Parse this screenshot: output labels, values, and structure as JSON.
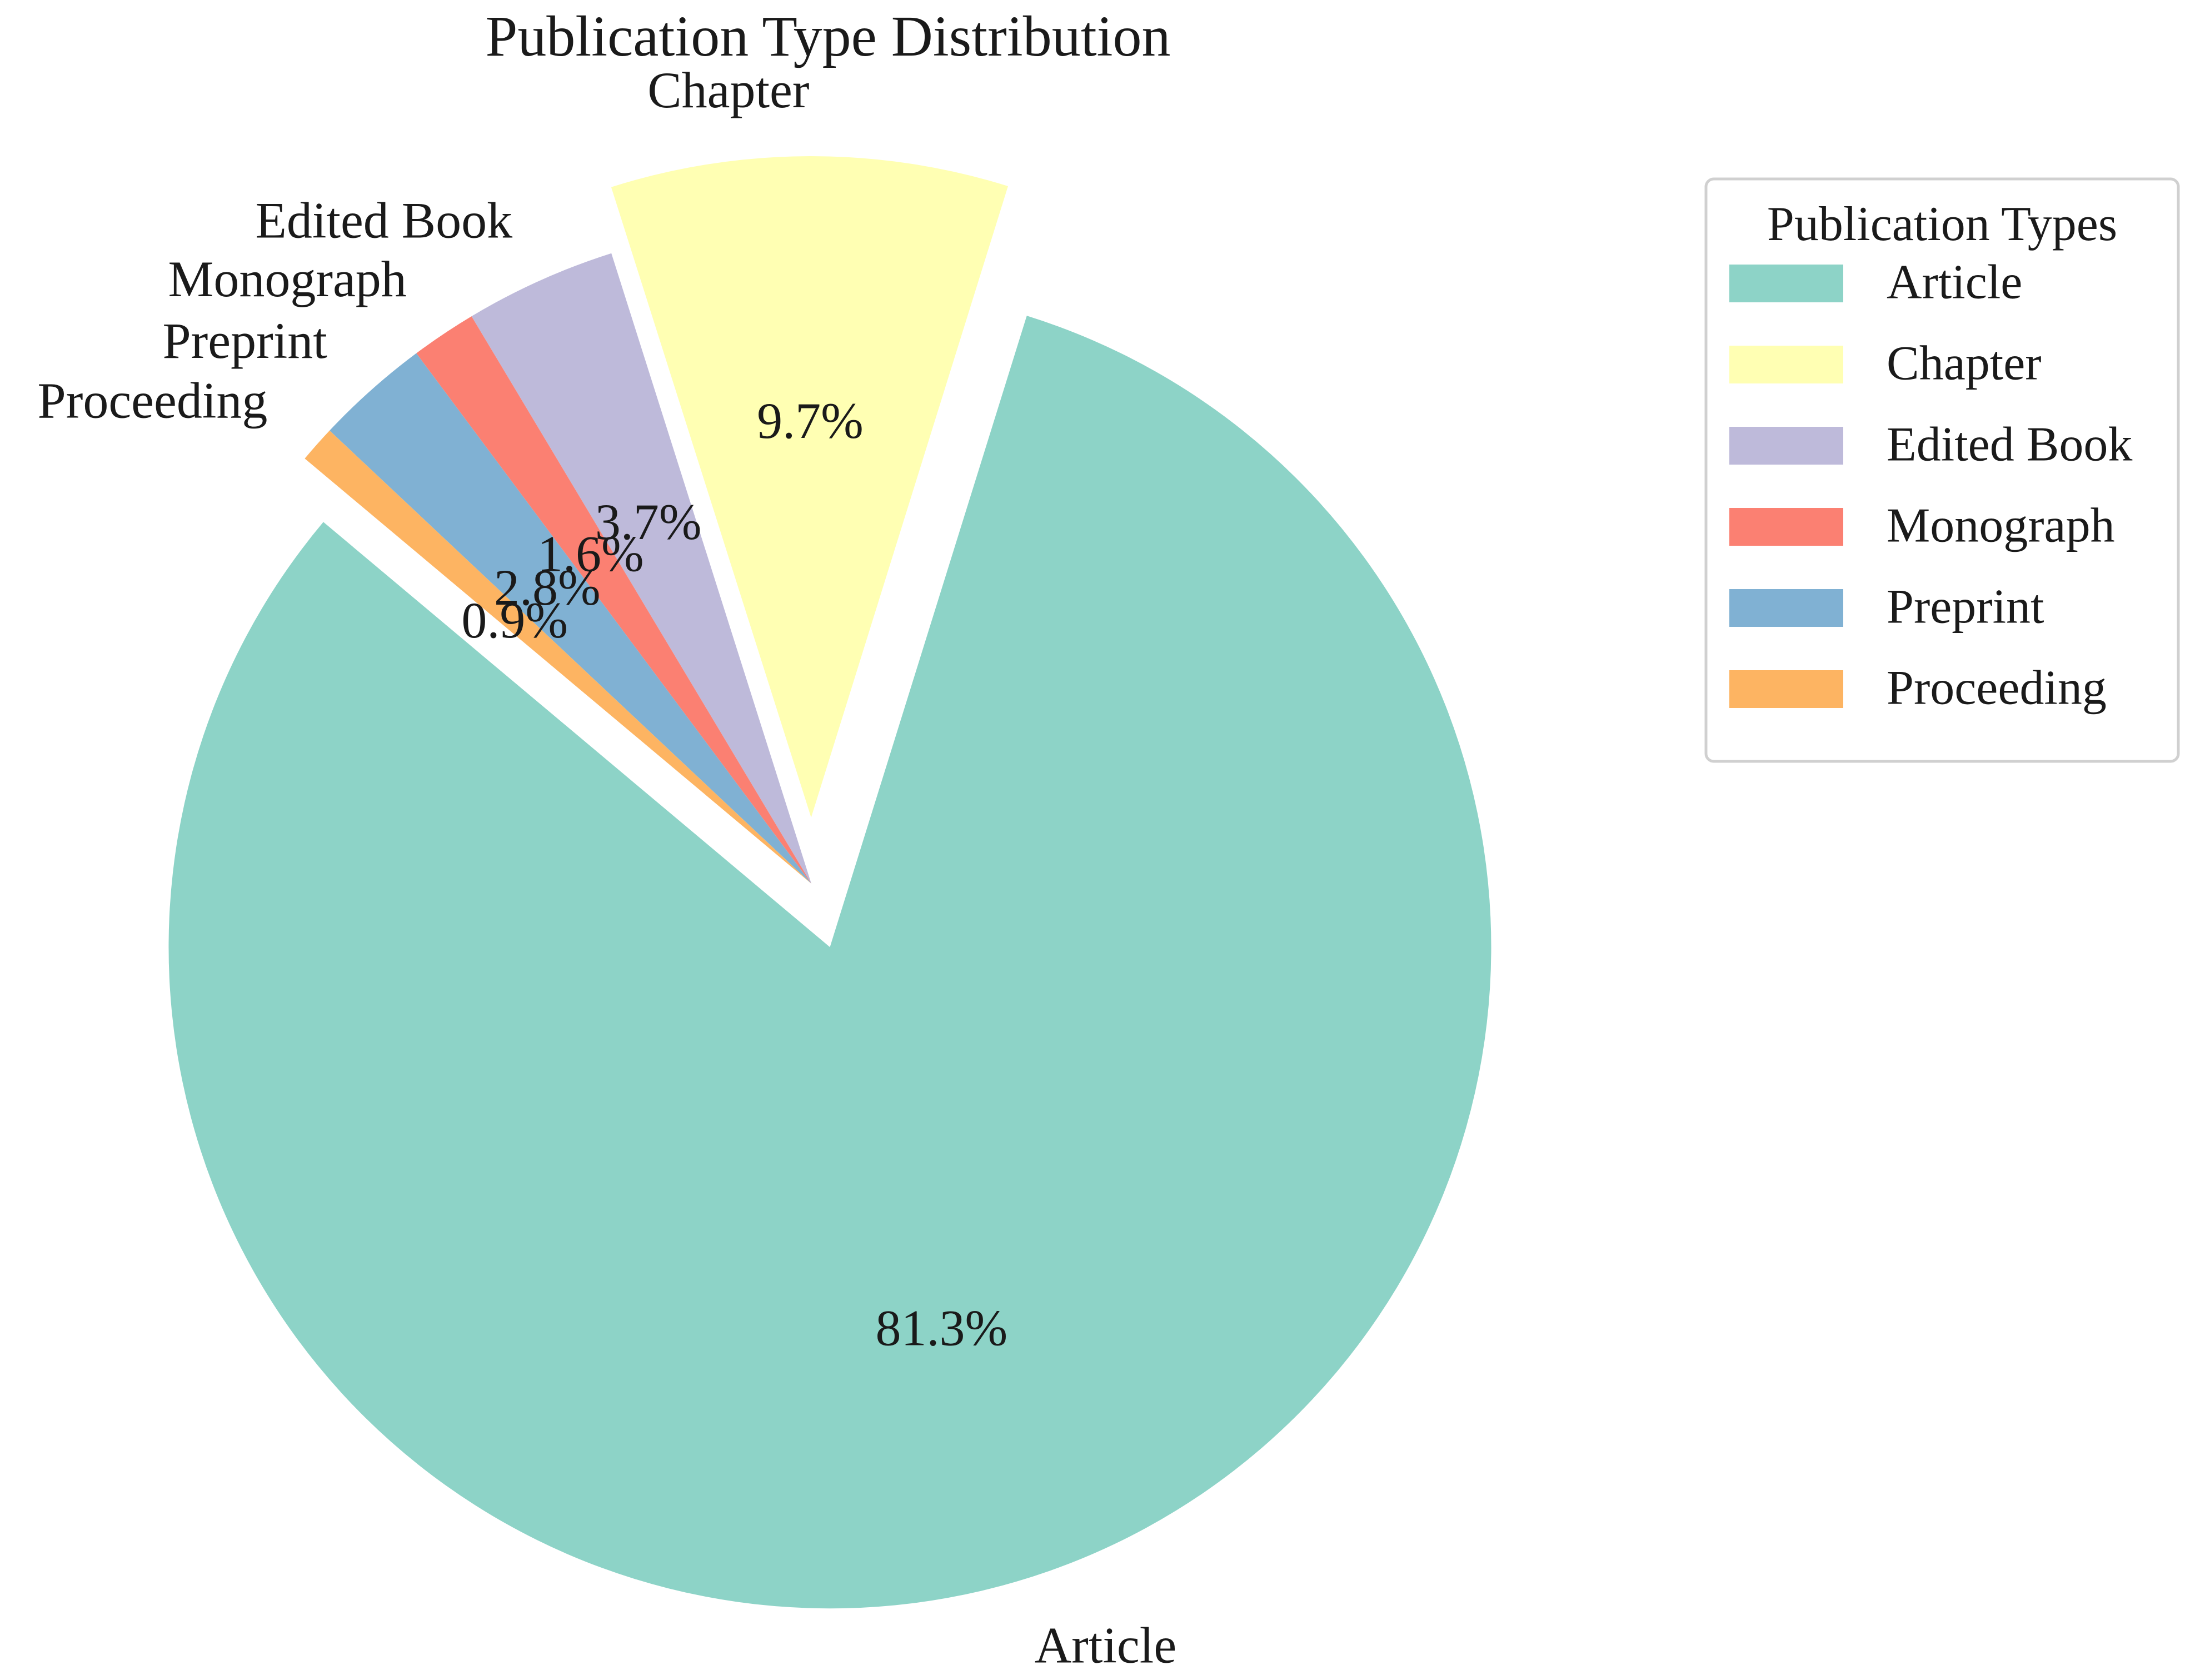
{
  "chart_data": {
    "type": "pie",
    "title": "Publication Type Distribution",
    "legend": {
      "title": "Publication Types",
      "placement": "right"
    },
    "slices": [
      {
        "label": "Article",
        "value": 81.3,
        "pct_label": "81.3%",
        "color": "#8dd3c7",
        "exploded": true
      },
      {
        "label": "Chapter",
        "value": 9.7,
        "pct_label": "9.7%",
        "color": "#ffffb3",
        "exploded": true
      },
      {
        "label": "Edited Book",
        "value": 3.7,
        "pct_label": "3.7%",
        "color": "#bebada",
        "exploded": false
      },
      {
        "label": "Monograph",
        "value": 1.6,
        "pct_label": "1.6%",
        "color": "#fb8072",
        "exploded": false
      },
      {
        "label": "Preprint",
        "value": 2.8,
        "pct_label": "2.8%",
        "color": "#80b1d3",
        "exploded": false
      },
      {
        "label": "Proceeding",
        "value": 0.9,
        "pct_label": "0.9%",
        "color": "#fdb462",
        "exploded": false
      }
    ]
  }
}
